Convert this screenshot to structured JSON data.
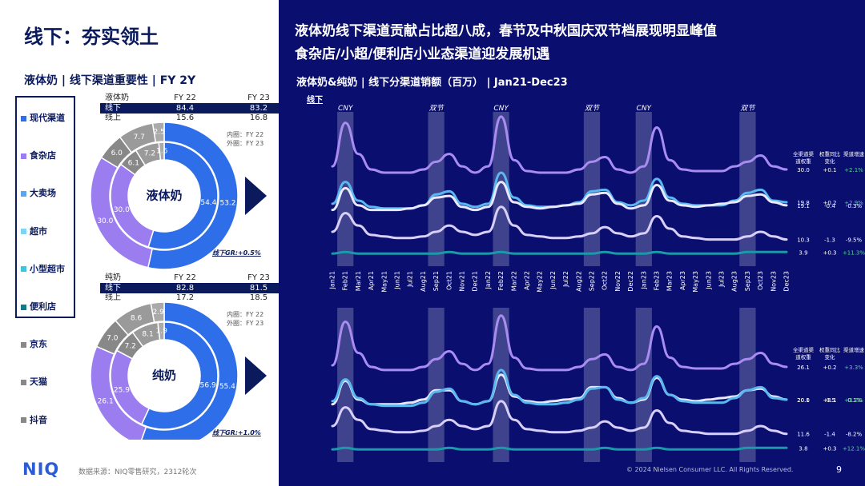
{
  "left": {
    "title": "线下：夯实领土",
    "subtitle": "液体奶 | 线下渠道重要性 | FY 2Y",
    "legend": [
      {
        "label": "现代渠道",
        "color": "#2e6ee8",
        "boxed": true
      },
      {
        "label": "食杂店",
        "color": "#9b7df0",
        "boxed": true
      },
      {
        "label": "大卖场",
        "color": "#5aa7ee",
        "boxed": true
      },
      {
        "label": "超市",
        "color": "#7fd3f7",
        "boxed": true
      },
      {
        "label": "小型超市",
        "color": "#3cc6e6",
        "boxed": true
      },
      {
        "label": "便利店",
        "color": "#0d7c8c",
        "boxed": true
      },
      {
        "label": "京东",
        "color": "#888888",
        "boxed": false
      },
      {
        "label": "天猫",
        "color": "#888888",
        "boxed": false
      },
      {
        "label": "抖音",
        "color": "#888888",
        "boxed": false
      }
    ],
    "panels": [
      {
        "name": "液体奶",
        "col0": "液体奶",
        "h1": "FY 22",
        "h2": "FY 23",
        "rows": [
          {
            "label": "线下",
            "v1": "84.4",
            "v2": "83.2",
            "hl": true
          },
          {
            "label": "线上",
            "v1": "15.6",
            "v2": "16.8",
            "hl": false
          }
        ],
        "inner_note": "内圈：FY 22",
        "outer_note": "外圈：FY 23",
        "gr": "线下GR:+0.5%",
        "outer": [
          {
            "v": 53.2,
            "c": "#2e6ee8"
          },
          {
            "v": 30.0,
            "c": "#9b7df0"
          },
          {
            "v": 6.0,
            "c": "#888888"
          },
          {
            "v": 7.7,
            "c": "#9a9a9a"
          },
          {
            "v": 2.5,
            "c": "#aaaaaa"
          }
        ],
        "inner": [
          {
            "v": 54.4,
            "c": "#2e6ee8"
          },
          {
            "v": 30.0,
            "c": "#9b7df0"
          },
          {
            "v": 6.1,
            "c": "#888888"
          },
          {
            "v": 7.2,
            "c": "#9a9a9a"
          },
          {
            "v": 1.6,
            "c": "#aaaaaa"
          }
        ]
      },
      {
        "name": "纯奶",
        "col0": "纯奶",
        "h1": "FY 22",
        "h2": "FY 23",
        "rows": [
          {
            "label": "线下",
            "v1": "82.8",
            "v2": "81.5",
            "hl": true
          },
          {
            "label": "线上",
            "v1": "17.2",
            "v2": "18.5",
            "hl": false
          }
        ],
        "inner_note": "内圈：FY 22",
        "outer_note": "外圈：FY 23",
        "gr": "线下GR:+1.0%",
        "outer": [
          {
            "v": 55.4,
            "c": "#2e6ee8"
          },
          {
            "v": 26.1,
            "c": "#9b7df0"
          },
          {
            "v": 7.0,
            "c": "#888888"
          },
          {
            "v": 8.6,
            "c": "#9a9a9a"
          },
          {
            "v": 2.9,
            "c": "#aaaaaa"
          }
        ],
        "inner": [
          {
            "v": 56.9,
            "c": "#2e6ee8"
          },
          {
            "v": 25.9,
            "c": "#9b7df0"
          },
          {
            "v": 7.2,
            "c": "#888888"
          },
          {
            "v": 8.1,
            "c": "#9a9a9a"
          },
          {
            "v": 1.9,
            "c": "#aaaaaa"
          }
        ]
      }
    ],
    "source": "数据来源：NIQ零售研究，2312轮次",
    "logo": "NIQ"
  },
  "right": {
    "title1": "液体奶线下渠道贡献占比超八成，春节及中秋国庆双节档展现明显峰值",
    "title2": "食杂店/小超/便利店小业态渠道迎发展机遇",
    "subtitle": "液体奶&纯奶 | 线下分渠道销额（百万） | Jan21-Dec23",
    "copyright": "© 2024 Nielsen Consumer LLC. All Rights Reserved.",
    "page": "9"
  },
  "chart_data": [
    {
      "type": "line",
      "title": "线下",
      "x": [
        "Jan21",
        "Feb21",
        "Mar21",
        "Apr21",
        "May21",
        "Jun21",
        "Jul21",
        "Aug21",
        "Sep21",
        "Oct21",
        "Nov21",
        "Dec21",
        "Jan22",
        "Feb22",
        "Mar22",
        "Apr22",
        "May22",
        "Jun22",
        "Jul22",
        "Aug22",
        "Sep22",
        "Oct22",
        "Nov22",
        "Dec22",
        "Jan23",
        "Feb23",
        "Mar23",
        "Apr23",
        "May23",
        "Jun23",
        "Jul23",
        "Aug23",
        "Sep23",
        "Oct23",
        "Nov23",
        "Dec23"
      ],
      "highlights": [
        {
          "label": "CNY",
          "index": 1
        },
        {
          "label": "双节",
          "index": 8
        },
        {
          "label": "CNY",
          "index": 13
        },
        {
          "label": "双节",
          "index": 20
        },
        {
          "label": "CNY",
          "index": 24
        },
        {
          "label": "双节",
          "index": 32
        }
      ],
      "table_headers": [
        "全渠道渠道权重",
        "权重同比变化",
        "渠道增速"
      ],
      "series": [
        {
          "color": "#a98cf2",
          "weight": "30.0",
          "chg": "+0.1",
          "growth": "+2.1%",
          "values": [
            60,
            88,
            68,
            58,
            56,
            56,
            56,
            58,
            63,
            68,
            60,
            56,
            60,
            92,
            64,
            57,
            56,
            56,
            56,
            58,
            63,
            66,
            58,
            56,
            60,
            85,
            64,
            58,
            57,
            57,
            57,
            60,
            63,
            67,
            60,
            58
          ]
        },
        {
          "color": "#5ab8f0",
          "weight": "19.8",
          "chg": "+0.2",
          "growth": "+2.9%",
          "values": [
            36,
            50,
            38,
            34,
            33,
            33,
            33,
            35,
            42,
            44,
            36,
            34,
            36,
            56,
            40,
            35,
            34,
            34,
            35,
            37,
            44,
            45,
            37,
            35,
            38,
            52,
            40,
            36,
            35,
            35,
            35,
            38,
            43,
            45,
            38,
            37
          ]
        },
        {
          "color": "#e8e8ff",
          "weight": "19.1",
          "chg": "-0.4",
          "growth": "-0.3%",
          "values": [
            32,
            46,
            35,
            32,
            32,
            32,
            33,
            35,
            40,
            41,
            34,
            32,
            34,
            50,
            37,
            34,
            33,
            34,
            35,
            36,
            42,
            43,
            36,
            33,
            35,
            48,
            38,
            35,
            34,
            35,
            36,
            37,
            41,
            42,
            37,
            35
          ]
        },
        {
          "color": "#d8cffa",
          "weight": "10.3",
          "chg": "-1.3",
          "growth": "-9.5%",
          "values": [
            18,
            30,
            22,
            16,
            15,
            14,
            14,
            15,
            18,
            22,
            18,
            16,
            18,
            34,
            22,
            16,
            15,
            14,
            14,
            15,
            17,
            21,
            17,
            15,
            17,
            28,
            20,
            15,
            14,
            13,
            13,
            13,
            15,
            18,
            15,
            13
          ]
        },
        {
          "color": "#1a9aa8",
          "weight": "3.9",
          "chg": "+0.3",
          "growth": "+11.3%",
          "values": [
            4,
            5,
            4,
            4,
            4,
            4,
            4,
            4,
            4,
            5,
            4,
            4,
            4,
            5,
            4,
            4,
            4,
            4,
            4,
            4,
            4,
            5,
            4,
            4,
            4,
            5,
            4,
            4,
            4,
            4,
            4,
            4,
            5,
            5,
            5,
            5
          ]
        }
      ]
    },
    {
      "type": "line",
      "title": "",
      "x": [
        "Jan21",
        "Feb21",
        "Mar21",
        "Apr21",
        "May21",
        "Jun21",
        "Jul21",
        "Aug21",
        "Sep21",
        "Oct21",
        "Nov21",
        "Dec21",
        "Jan22",
        "Feb22",
        "Mar22",
        "Apr22",
        "May22",
        "Jun22",
        "Jul22",
        "Aug22",
        "Sep22",
        "Oct22",
        "Nov22",
        "Dec22",
        "Jan23",
        "Feb23",
        "Mar23",
        "Apr23",
        "May23",
        "Jun23",
        "Jul23",
        "Aug23",
        "Sep23",
        "Oct23",
        "Nov23",
        "Dec 23"
      ],
      "highlights": [
        {
          "label": "",
          "index": 1
        },
        {
          "label": "",
          "index": 8
        },
        {
          "label": "",
          "index": 13
        },
        {
          "label": "",
          "index": 20
        },
        {
          "label": "",
          "index": 24
        },
        {
          "label": "",
          "index": 32
        }
      ],
      "table_headers": [
        "全渠道渠道权重",
        "权重同比变化",
        "渠道增速"
      ],
      "series": [
        {
          "color": "#a98cf2",
          "weight": "26.1",
          "chg": "+0.2",
          "growth": "+3.3%",
          "values": [
            58,
            86,
            66,
            57,
            55,
            55,
            55,
            57,
            62,
            67,
            59,
            55,
            59,
            90,
            63,
            56,
            55,
            55,
            55,
            57,
            62,
            65,
            57,
            55,
            59,
            83,
            63,
            57,
            56,
            56,
            56,
            59,
            62,
            66,
            59,
            57
          ]
        },
        {
          "color": "#e8e8ff",
          "weight": "20.1",
          "chg": "-0.5",
          "growth": "-0.1%",
          "values": [
            33,
            48,
            36,
            33,
            33,
            33,
            34,
            36,
            42,
            42,
            35,
            33,
            35,
            52,
            38,
            35,
            34,
            35,
            36,
            37,
            44,
            44,
            37,
            34,
            36,
            50,
            39,
            36,
            35,
            36,
            37,
            38,
            42,
            43,
            38,
            36
          ]
        },
        {
          "color": "#5ab8f0",
          "weight": "20.0",
          "chg": "+0.1",
          "growth": "+3.2%",
          "values": [
            35,
            49,
            37,
            33,
            32,
            32,
            32,
            34,
            41,
            43,
            35,
            33,
            35,
            55,
            39,
            34,
            33,
            33,
            34,
            36,
            43,
            44,
            36,
            34,
            37,
            51,
            39,
            35,
            34,
            34,
            34,
            37,
            42,
            44,
            37,
            36
          ]
        },
        {
          "color": "#d8cffa",
          "weight": "11.6",
          "chg": "-1.4",
          "growth": "-8.2%",
          "values": [
            19,
            31,
            23,
            17,
            16,
            15,
            15,
            16,
            19,
            23,
            19,
            17,
            19,
            35,
            23,
            17,
            16,
            15,
            15,
            16,
            18,
            22,
            18,
            16,
            18,
            29,
            21,
            16,
            15,
            14,
            14,
            14,
            16,
            19,
            16,
            14
          ]
        },
        {
          "color": "#1a9aa8",
          "weight": "3.8",
          "chg": "+0.3",
          "growth": "+12.1%",
          "values": [
            4,
            5,
            4,
            4,
            4,
            4,
            4,
            4,
            4,
            5,
            4,
            4,
            4,
            5,
            4,
            4,
            4,
            4,
            4,
            4,
            4,
            5,
            4,
            4,
            4,
            5,
            4,
            4,
            4,
            4,
            4,
            4,
            5,
            5,
            5,
            5
          ]
        }
      ]
    }
  ]
}
